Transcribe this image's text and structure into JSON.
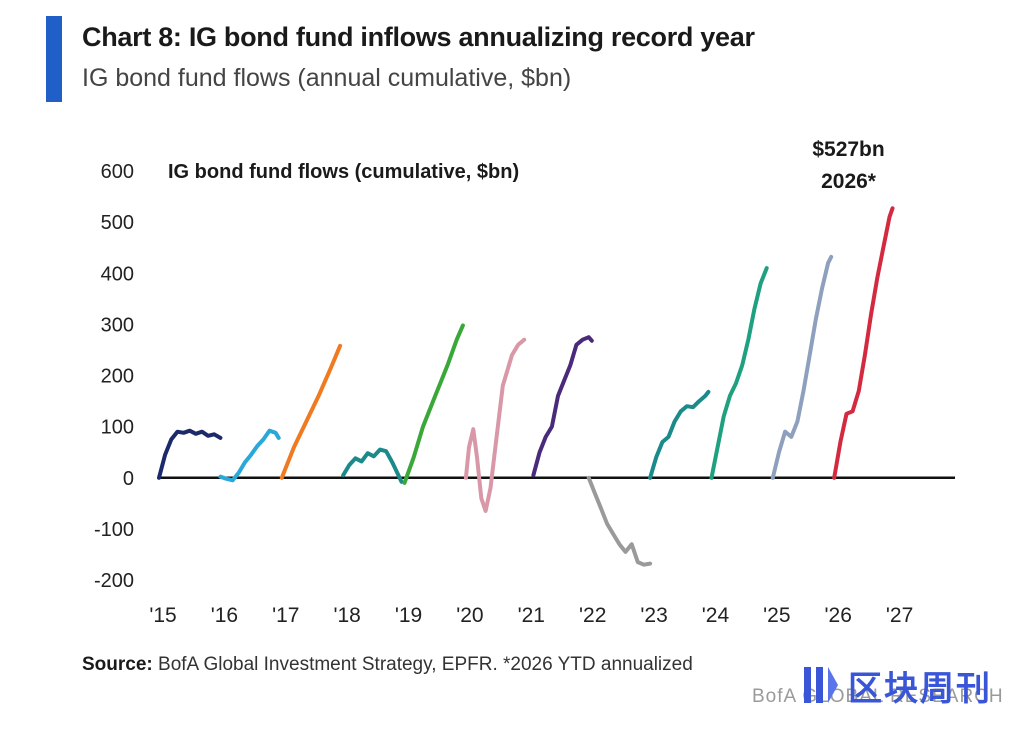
{
  "header": {
    "title": "Chart 8: IG bond fund inflows annualizing record year",
    "subtitle": "IG bond fund flows (annual cumulative, $bn)"
  },
  "footer": {
    "source_label": "Source:",
    "source_text": " BofA Global Investment Strategy, EPFR. *2026 YTD annualized",
    "brand": "BofA GLOBAL RESEARCH"
  },
  "watermark": {
    "text": "区块周刊",
    "color": "#3a56d8"
  },
  "colors": {
    "accent": "#1f5fc7"
  },
  "chart_data": {
    "type": "line",
    "title": "IG bond fund flows (cumulative, $bn)",
    "xlabel": "",
    "ylabel": "",
    "x_range": [
      2015,
      2028
    ],
    "ylim": [
      -200,
      600
    ],
    "y_ticks": [
      600,
      500,
      400,
      300,
      200,
      100,
      0,
      -100,
      -200
    ],
    "x_ticks": [
      {
        "value": 2015,
        "label": "'15"
      },
      {
        "value": 2016,
        "label": "'16"
      },
      {
        "value": 2017,
        "label": "'17"
      },
      {
        "value": 2018,
        "label": "'18"
      },
      {
        "value": 2019,
        "label": "'19"
      },
      {
        "value": 2020,
        "label": "'20"
      },
      {
        "value": 2021,
        "label": "'21"
      },
      {
        "value": 2022,
        "label": "'22"
      },
      {
        "value": 2023,
        "label": "'23"
      },
      {
        "value": 2024,
        "label": "'24"
      },
      {
        "value": 2025,
        "label": "'25"
      },
      {
        "value": 2026,
        "label": "'26"
      },
      {
        "value": 2027,
        "label": "'27"
      }
    ],
    "grid": false,
    "legend": "none",
    "annotation": {
      "text_line1": "$527bn",
      "text_line2": "2026*",
      "x": 2026.95,
      "y": 527
    },
    "series": [
      {
        "year": "2015",
        "color": "#1c2a6b",
        "points": [
          [
            2015.0,
            0
          ],
          [
            2015.1,
            45
          ],
          [
            2015.2,
            75
          ],
          [
            2015.3,
            90
          ],
          [
            2015.4,
            88
          ],
          [
            2015.5,
            92
          ],
          [
            2015.6,
            86
          ],
          [
            2015.7,
            90
          ],
          [
            2015.8,
            82
          ],
          [
            2015.9,
            85
          ],
          [
            2016.0,
            78
          ]
        ]
      },
      {
        "year": "2016",
        "color": "#2aa8d8",
        "points": [
          [
            2016.0,
            2
          ],
          [
            2016.1,
            -2
          ],
          [
            2016.2,
            -5
          ],
          [
            2016.3,
            10
          ],
          [
            2016.4,
            30
          ],
          [
            2016.5,
            45
          ],
          [
            2016.6,
            62
          ],
          [
            2016.7,
            75
          ],
          [
            2016.8,
            92
          ],
          [
            2016.9,
            88
          ],
          [
            2016.95,
            78
          ]
        ]
      },
      {
        "year": "2017",
        "color": "#f07a22",
        "points": [
          [
            2017.0,
            0
          ],
          [
            2017.2,
            60
          ],
          [
            2017.4,
            110
          ],
          [
            2017.6,
            160
          ],
          [
            2017.8,
            215
          ],
          [
            2017.95,
            258
          ]
        ]
      },
      {
        "year": "2018",
        "color": "#1c8a8a",
        "points": [
          [
            2018.0,
            5
          ],
          [
            2018.1,
            25
          ],
          [
            2018.2,
            38
          ],
          [
            2018.3,
            32
          ],
          [
            2018.4,
            48
          ],
          [
            2018.5,
            42
          ],
          [
            2018.6,
            55
          ],
          [
            2018.7,
            52
          ],
          [
            2018.8,
            30
          ],
          [
            2018.9,
            5
          ],
          [
            2018.95,
            -8
          ]
        ]
      },
      {
        "year": "2019",
        "color": "#3aa838",
        "points": [
          [
            2019.0,
            -10
          ],
          [
            2019.15,
            40
          ],
          [
            2019.3,
            100
          ],
          [
            2019.5,
            160
          ],
          [
            2019.7,
            220
          ],
          [
            2019.85,
            270
          ],
          [
            2019.95,
            298
          ]
        ]
      },
      {
        "year": "2020",
        "color": "#d898a8",
        "points": [
          [
            2020.0,
            0
          ],
          [
            2020.05,
            60
          ],
          [
            2020.12,
            95
          ],
          [
            2020.18,
            40
          ],
          [
            2020.25,
            -40
          ],
          [
            2020.32,
            -65
          ],
          [
            2020.4,
            -20
          ],
          [
            2020.5,
            80
          ],
          [
            2020.6,
            180
          ],
          [
            2020.75,
            240
          ],
          [
            2020.85,
            260
          ],
          [
            2020.95,
            270
          ]
        ]
      },
      {
        "year": "2021",
        "color": "#4a2a7a",
        "points": [
          [
            2021.1,
            5
          ],
          [
            2021.2,
            50
          ],
          [
            2021.3,
            80
          ],
          [
            2021.4,
            100
          ],
          [
            2021.5,
            160
          ],
          [
            2021.6,
            190
          ],
          [
            2021.7,
            220
          ],
          [
            2021.8,
            260
          ],
          [
            2021.9,
            270
          ],
          [
            2022.0,
            275
          ],
          [
            2022.05,
            268
          ]
        ]
      },
      {
        "year": "2022",
        "color": "#9a9a9a",
        "points": [
          [
            2022.0,
            0
          ],
          [
            2022.1,
            -30
          ],
          [
            2022.2,
            -60
          ],
          [
            2022.3,
            -90
          ],
          [
            2022.4,
            -110
          ],
          [
            2022.5,
            -130
          ],
          [
            2022.6,
            -145
          ],
          [
            2022.7,
            -130
          ],
          [
            2022.8,
            -165
          ],
          [
            2022.9,
            -170
          ],
          [
            2023.0,
            -168
          ]
        ]
      },
      {
        "year": "2023",
        "color": "#1a8a8a",
        "points": [
          [
            2023.0,
            0
          ],
          [
            2023.1,
            40
          ],
          [
            2023.2,
            70
          ],
          [
            2023.3,
            80
          ],
          [
            2023.4,
            110
          ],
          [
            2023.5,
            130
          ],
          [
            2023.6,
            140
          ],
          [
            2023.7,
            138
          ],
          [
            2023.8,
            150
          ],
          [
            2023.9,
            160
          ],
          [
            2023.95,
            168
          ]
        ]
      },
      {
        "year": "2024",
        "color": "#1fa080",
        "points": [
          [
            2024.0,
            0
          ],
          [
            2024.1,
            60
          ],
          [
            2024.2,
            120
          ],
          [
            2024.3,
            160
          ],
          [
            2024.4,
            185
          ],
          [
            2024.5,
            220
          ],
          [
            2024.6,
            270
          ],
          [
            2024.7,
            330
          ],
          [
            2024.8,
            380
          ],
          [
            2024.9,
            410
          ]
        ]
      },
      {
        "year": "2025",
        "color": "#8ea0be",
        "points": [
          [
            2025.0,
            0
          ],
          [
            2025.1,
            50
          ],
          [
            2025.2,
            90
          ],
          [
            2025.3,
            80
          ],
          [
            2025.4,
            110
          ],
          [
            2025.5,
            170
          ],
          [
            2025.6,
            240
          ],
          [
            2025.7,
            310
          ],
          [
            2025.8,
            370
          ],
          [
            2025.9,
            420
          ],
          [
            2025.95,
            432
          ]
        ]
      },
      {
        "year": "2026",
        "color": "#d42a40",
        "points": [
          [
            2026.0,
            0
          ],
          [
            2026.1,
            70
          ],
          [
            2026.2,
            125
          ],
          [
            2026.3,
            130
          ],
          [
            2026.4,
            170
          ],
          [
            2026.5,
            240
          ],
          [
            2026.6,
            320
          ],
          [
            2026.7,
            390
          ],
          [
            2026.8,
            450
          ],
          [
            2026.9,
            510
          ],
          [
            2026.95,
            527
          ]
        ]
      }
    ]
  }
}
